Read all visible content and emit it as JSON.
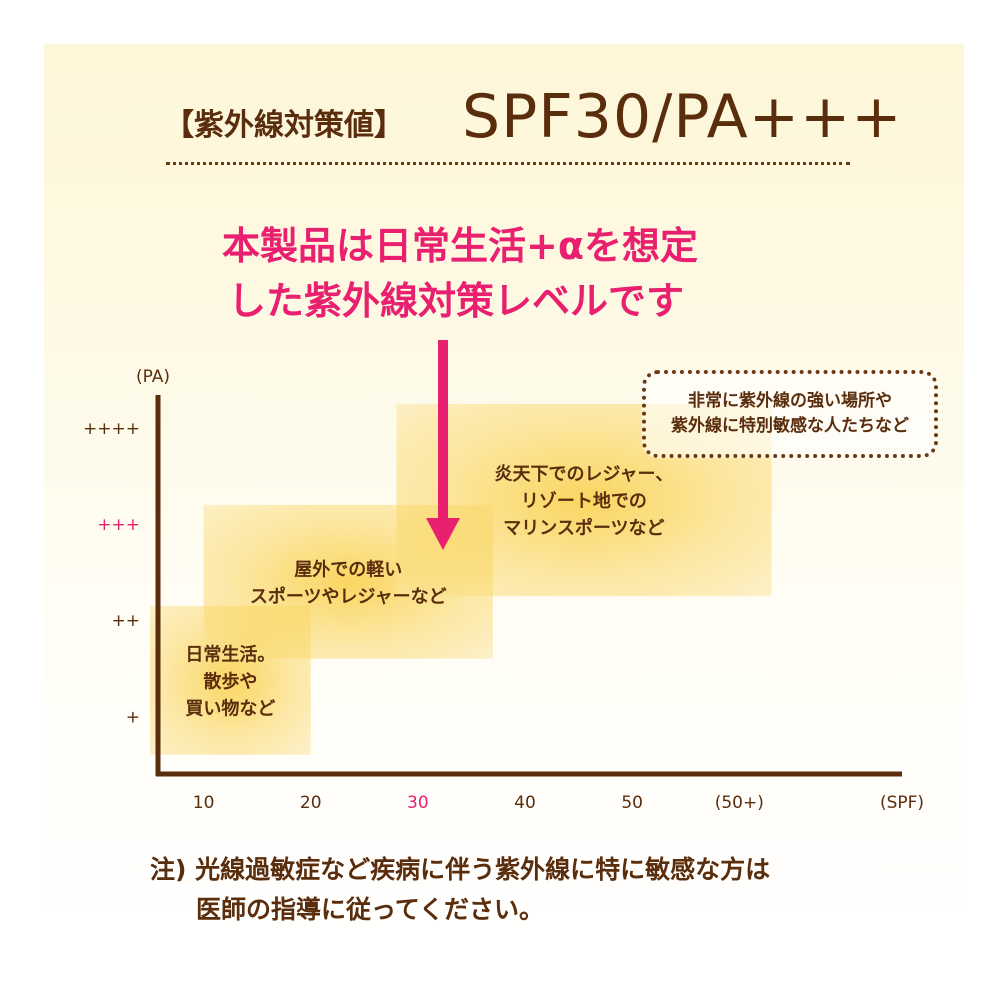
{
  "header": {
    "label": "【紫外線対策値】",
    "value": "SPF30/PA+++"
  },
  "lead": {
    "line1": "本製品は日常生活+αを想定",
    "line2": "した紫外線対策レベルです"
  },
  "callout": {
    "line1": "非常に紫外線の強い場所や",
    "line2": "紫外線に特別敏感な人たちなど"
  },
  "note": {
    "line1": "注) 光線過敏症など疾病に伴う紫外線に特に敏感な方は",
    "line2": "医師の指導に従ってください。"
  },
  "colors": {
    "text": "#5a2d0c",
    "accent": "#e8206f",
    "box_center": "#f9cf48",
    "box_edge": "#fbe6a6"
  },
  "chart_data": {
    "type": "area",
    "title": "",
    "xlabel": "(SPF)",
    "ylabel": "(PA)",
    "x_ticks": [
      "10",
      "20",
      "30",
      "40",
      "50",
      "(50+)"
    ],
    "x_tick_highlight": "30",
    "y_ticks": [
      "+",
      "++",
      "+++",
      "++++"
    ],
    "y_tick_highlight": "+++",
    "x_index_range": [
      0.5,
      7.5
    ],
    "y_index_range": [
      0.4,
      4.5
    ],
    "regions": [
      {
        "label_lines": [
          "日常生活。",
          "散歩や",
          "買い物など"
        ],
        "spf_range": [
          5,
          20
        ],
        "pa_range": [
          0.6,
          2.15
        ]
      },
      {
        "label_lines": [
          "屋外での軽い",
          "スポーツやレジャーなど"
        ],
        "spf_range": [
          10,
          37
        ],
        "pa_range": [
          1.6,
          3.2
        ]
      },
      {
        "label_lines": [
          "炎天下でのレジャー、",
          "リゾート地での",
          "マリンスポーツなど"
        ],
        "spf_range": [
          28,
          63
        ],
        "pa_range": [
          2.25,
          4.25
        ]
      }
    ],
    "product_marker": {
      "spf": 30,
      "pa": "+++"
    }
  }
}
